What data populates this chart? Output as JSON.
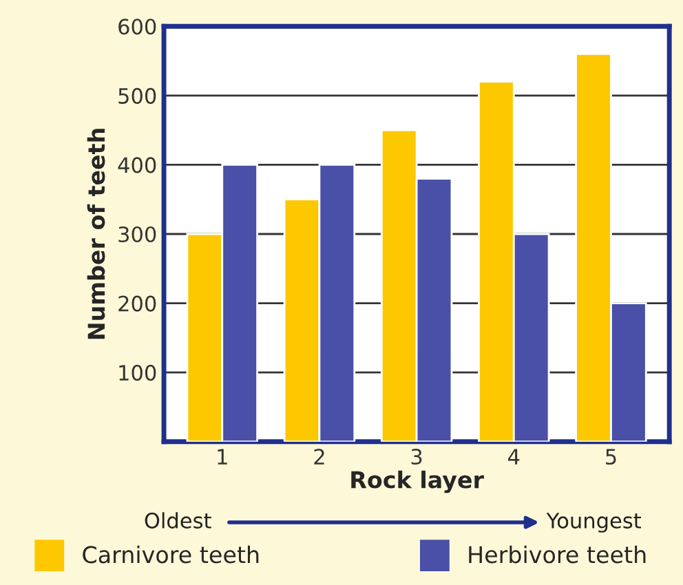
{
  "chart_data": {
    "type": "bar",
    "xlabel": "Rock layer",
    "ylabel": "Number of teeth",
    "categories": [
      "1",
      "2",
      "3",
      "4",
      "5"
    ],
    "series": [
      {
        "name": "Carnivore teeth",
        "color": "#fdc800",
        "values": [
          300,
          350,
          450,
          520,
          560
        ]
      },
      {
        "name": "Herbivore teeth",
        "color": "#4a50a8",
        "values": [
          400,
          400,
          380,
          300,
          200
        ]
      }
    ],
    "ylim": [
      0,
      600
    ],
    "yticks": [
      100,
      200,
      300,
      400,
      500,
      600
    ],
    "grid": "y",
    "legend": "bottom",
    "annotations": [
      "Oldest",
      "Youngest"
    ]
  }
}
